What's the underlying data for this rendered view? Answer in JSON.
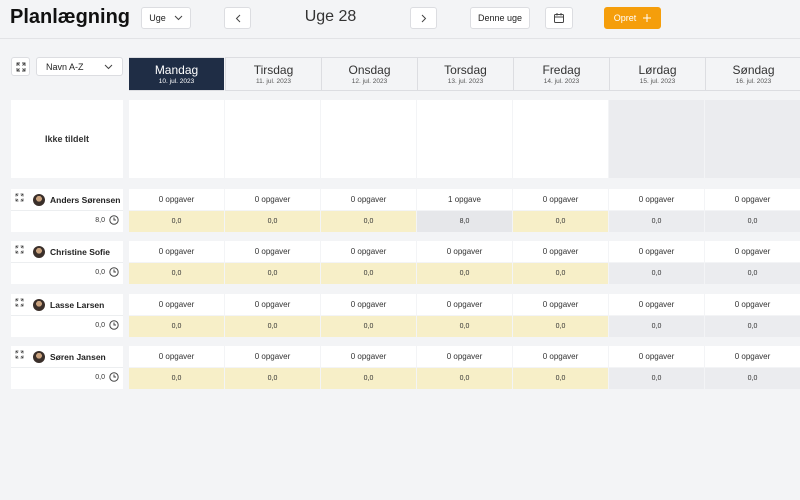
{
  "header": {
    "title": "Planlægning",
    "view_select": "Uge",
    "week_label": "Uge 28",
    "today_button": "Denne uge",
    "create_button": "Opret"
  },
  "toolbar": {
    "sort_select": "Navn A-Z"
  },
  "days": [
    {
      "name": "Mandag",
      "date": "10. jul. 2023"
    },
    {
      "name": "Tirsdag",
      "date": "11. jul. 2023"
    },
    {
      "name": "Onsdag",
      "date": "12. jul. 2023"
    },
    {
      "name": "Torsdag",
      "date": "13. jul. 2023"
    },
    {
      "name": "Fredag",
      "date": "14. jul. 2023"
    },
    {
      "name": "Lørdag",
      "date": "15. jul. 2023"
    },
    {
      "name": "Søndag",
      "date": "16. jul. 2023"
    }
  ],
  "unassigned": {
    "label": "Ikke tildelt"
  },
  "employees": [
    {
      "name": "Anders Sørensen",
      "total": "8,0",
      "tasks": [
        "0 opgaver",
        "0 opgaver",
        "0 opgaver",
        "1 opgave",
        "0 opgaver",
        "0 opgaver",
        "0 opgaver"
      ],
      "hours": [
        "0,0",
        "0,0",
        "0,0",
        "8,0",
        "0,0",
        "0,0",
        "0,0"
      ]
    },
    {
      "name": "Christine Sofie",
      "total": "0,0",
      "tasks": [
        "0 opgaver",
        "0 opgaver",
        "0 opgaver",
        "0 opgaver",
        "0 opgaver",
        "0 opgaver",
        "0 opgaver"
      ],
      "hours": [
        "0,0",
        "0,0",
        "0,0",
        "0,0",
        "0,0",
        "0,0",
        "0,0"
      ]
    },
    {
      "name": "Lasse Larsen",
      "total": "0,0",
      "tasks": [
        "0 opgaver",
        "0 opgaver",
        "0 opgaver",
        "0 opgaver",
        "0 opgaver",
        "0 opgaver",
        "0 opgaver"
      ],
      "hours": [
        "0,0",
        "0,0",
        "0,0",
        "0,0",
        "0,0",
        "0,0",
        "0,0"
      ]
    },
    {
      "name": "Søren Jansen",
      "total": "0,0",
      "tasks": [
        "0 opgaver",
        "0 opgaver",
        "0 opgaver",
        "0 opgaver",
        "0 opgaver",
        "0 opgaver",
        "0 opgaver"
      ],
      "hours": [
        "0,0",
        "0,0",
        "0,0",
        "0,0",
        "0,0",
        "0,0",
        "0,0"
      ]
    }
  ]
}
